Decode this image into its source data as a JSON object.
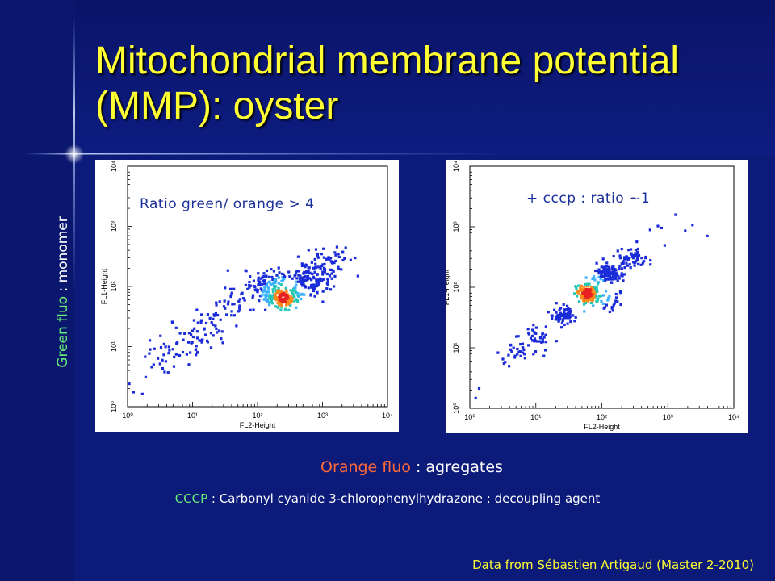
{
  "slide": {
    "title": "Mitochondrial membrane potential (MMP): oyster",
    "y_caption_colored": "Green fluo",
    "y_caption_rest": " : monomer",
    "x_caption_colored": "Orange fluo",
    "x_caption_rest": " : agregates",
    "note_colored": "CCCP",
    "note_rest": " : Carbonyl cyanide 3-chlorophenylhydrazone : decoupling agent",
    "credit": "Data from Sébastien Artigaud (Master 2-2010)",
    "colors": {
      "background": "#0c1a7a",
      "title": "#ffff33",
      "green": "#66ee77",
      "orange": "#ff6a3a"
    }
  },
  "chart_data": [
    {
      "type": "scatter",
      "annotation": "Ratio green/ orange > 4",
      "xlabel": "FL2-Height",
      "ylabel": "FL1-Height",
      "xscale": "log",
      "yscale": "log",
      "xlim": [
        1,
        10000
      ],
      "ylim": [
        1,
        10000
      ],
      "xticks": [
        "10⁰",
        "10¹",
        "10²",
        "10³",
        "10⁴"
      ],
      "yticks": [
        "10⁰",
        "10¹",
        "10²",
        "10³",
        "10⁴"
      ],
      "density": "low=blue, mid=cyan/green, high=red",
      "clusters": [
        {
          "x": 1.5,
          "y": 1.8,
          "n": 4,
          "spread": 0.12
        },
        {
          "x": 4,
          "y": 6,
          "n": 20,
          "spread": 0.18
        },
        {
          "x": 8,
          "y": 10,
          "n": 30,
          "spread": 0.18
        },
        {
          "x": 15,
          "y": 20,
          "n": 35,
          "spread": 0.2
        },
        {
          "x": 40,
          "y": 50,
          "n": 40,
          "spread": 0.22
        },
        {
          "x": 120,
          "y": 110,
          "n": 90,
          "spread": 0.18
        },
        {
          "x": 250,
          "y": 65,
          "n": 160,
          "spread": 0.13
        },
        {
          "x": 600,
          "y": 120,
          "n": 120,
          "spread": 0.16
        },
        {
          "x": 1200,
          "y": 250,
          "n": 60,
          "spread": 0.2
        }
      ],
      "peak": {
        "x": 250,
        "y": 65
      }
    },
    {
      "type": "scatter",
      "annotation": "+ cccp : ratio ~1",
      "xlabel": "FL2-Height",
      "ylabel": "FL1-Height",
      "xscale": "log",
      "yscale": "log",
      "xlim": [
        1,
        10000
      ],
      "ylim": [
        1,
        10000
      ],
      "xticks": [
        "10⁰",
        "10¹",
        "10²",
        "10³",
        "10⁴"
      ],
      "yticks": [
        "10⁰",
        "10¹",
        "10²",
        "10³",
        "10⁴"
      ],
      "density": "low=blue, mid=cyan/green, high=red",
      "clusters": [
        {
          "x": 1.6,
          "y": 2.0,
          "n": 3,
          "spread": 0.1
        },
        {
          "x": 5,
          "y": 8,
          "n": 25,
          "spread": 0.12
        },
        {
          "x": 10,
          "y": 15,
          "n": 40,
          "spread": 0.12
        },
        {
          "x": 25,
          "y": 35,
          "n": 70,
          "spread": 0.1
        },
        {
          "x": 60,
          "y": 80,
          "n": 180,
          "spread": 0.08
        },
        {
          "x": 130,
          "y": 170,
          "n": 120,
          "spread": 0.1
        },
        {
          "x": 280,
          "y": 320,
          "n": 60,
          "spread": 0.12
        },
        {
          "x": 120,
          "y": 60,
          "n": 30,
          "spread": 0.14
        },
        {
          "x": 1500,
          "y": 900,
          "n": 8,
          "spread": 0.25
        }
      ],
      "peak": {
        "x": 60,
        "y": 80
      }
    }
  ]
}
